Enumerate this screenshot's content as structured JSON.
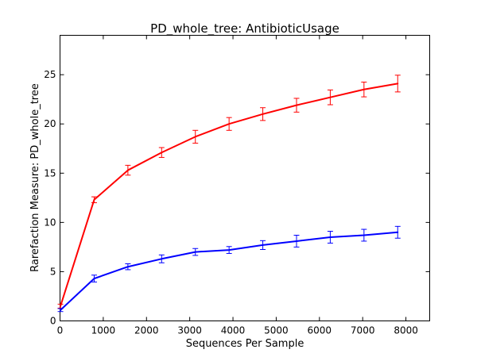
{
  "chart_data": {
    "type": "line",
    "title": "PD_whole_tree: AntibioticUsage",
    "xlabel": "Sequences Per Sample",
    "ylabel": "Rarefaction Measure: PD_whole_tree",
    "xlim": [
      0,
      8550
    ],
    "ylim": [
      0,
      29
    ],
    "xticks": [
      0,
      1000,
      2000,
      3000,
      4000,
      5000,
      6000,
      7000,
      8000
    ],
    "yticks": [
      0,
      5,
      10,
      15,
      20,
      25
    ],
    "grid": false,
    "legend": "none",
    "series": [
      {
        "color": "#ff0000",
        "x": [
          10,
          790,
          1570,
          2350,
          3130,
          3910,
          4690,
          5470,
          6250,
          7030,
          7810
        ],
        "y": [
          1.5,
          12.3,
          15.3,
          17.1,
          18.7,
          20.0,
          21.0,
          21.9,
          22.7,
          23.5,
          24.1
        ],
        "err": [
          0.2,
          0.3,
          0.5,
          0.5,
          0.65,
          0.65,
          0.65,
          0.7,
          0.75,
          0.75,
          0.85
        ]
      },
      {
        "color": "#0000ff",
        "x": [
          10,
          790,
          1570,
          2350,
          3130,
          3910,
          4690,
          5470,
          6250,
          7030,
          7810
        ],
        "y": [
          1.1,
          4.3,
          5.5,
          6.3,
          7.0,
          7.2,
          7.7,
          8.1,
          8.5,
          8.7,
          9.0
        ],
        "err": [
          0.15,
          0.35,
          0.3,
          0.4,
          0.35,
          0.35,
          0.45,
          0.6,
          0.6,
          0.6,
          0.6
        ]
      }
    ]
  }
}
